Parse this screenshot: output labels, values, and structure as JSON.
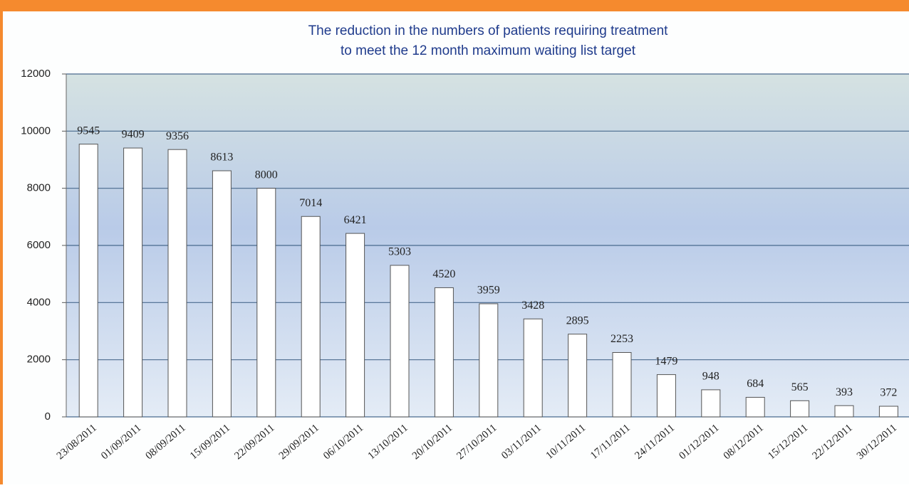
{
  "chart_data": {
    "type": "bar",
    "title": [
      "The reduction in the numbers of patients requiring treatment",
      "to meet the 12 month maximum waiting list target"
    ],
    "categories": [
      "23/08/2011",
      "01/09/2011",
      "08/09/2011",
      "15/09/2011",
      "22/09/2011",
      "29/09/2011",
      "06/10/2011",
      "13/10/2011",
      "20/10/2011",
      "27/10/2011",
      "03/11/2011",
      "10/11/2011",
      "17/11/2011",
      "24/11/2011",
      "01/12/2011",
      "08/12/2011",
      "15/12/2011",
      "22/12/2011",
      "30/12/2011"
    ],
    "values": [
      9545,
      9409,
      9356,
      8613,
      8000,
      7014,
      6421,
      5303,
      4520,
      3959,
      3428,
      2895,
      2253,
      1479,
      948,
      684,
      565,
      393,
      372
    ],
    "color": "#ffffff",
    "ylim": [
      0,
      12000
    ],
    "yticks": [
      0,
      2000,
      4000,
      6000,
      8000,
      10000,
      12000
    ],
    "grid": true
  }
}
